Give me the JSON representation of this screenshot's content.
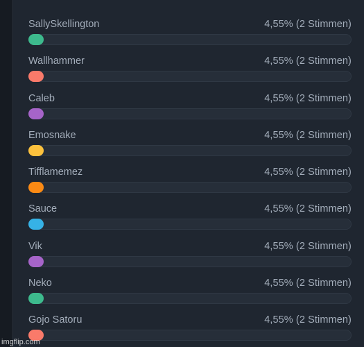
{
  "poll": {
    "options": [
      {
        "name": "SallySkellington",
        "result": "4,55% (2 Stimmen)",
        "fraction": 0.0455,
        "color": "#3dba8d"
      },
      {
        "name": "Wallhammer",
        "result": "4,55% (2 Stimmen)",
        "fraction": 0.0455,
        "color": "#fa7a6a"
      },
      {
        "name": "Caleb",
        "result": "4,55% (2 Stimmen)",
        "fraction": 0.0455,
        "color": "#a664c9"
      },
      {
        "name": "Emosnake",
        "result": "4,55% (2 Stimmen)",
        "fraction": 0.0455,
        "color": "#fcc13d"
      },
      {
        "name": "Tifflamemez",
        "result": "4,55% (2 Stimmen)",
        "fraction": 0.0455,
        "color": "#fb8a14"
      },
      {
        "name": "Sauce",
        "result": "4,55% (2 Stimmen)",
        "fraction": 0.0455,
        "color": "#36b2e6"
      },
      {
        "name": "Vik",
        "result": "4,55% (2 Stimmen)",
        "fraction": 0.0455,
        "color": "#a664c9"
      },
      {
        "name": "Neko",
        "result": "4,55% (2 Stimmen)",
        "fraction": 0.0455,
        "color": "#3dba8d"
      },
      {
        "name": "Gojo Satoru",
        "result": "4,55% (2 Stimmen)",
        "fraction": 0.0455,
        "color": "#fa7a6a"
      }
    ]
  },
  "watermark": "imgflip.com"
}
